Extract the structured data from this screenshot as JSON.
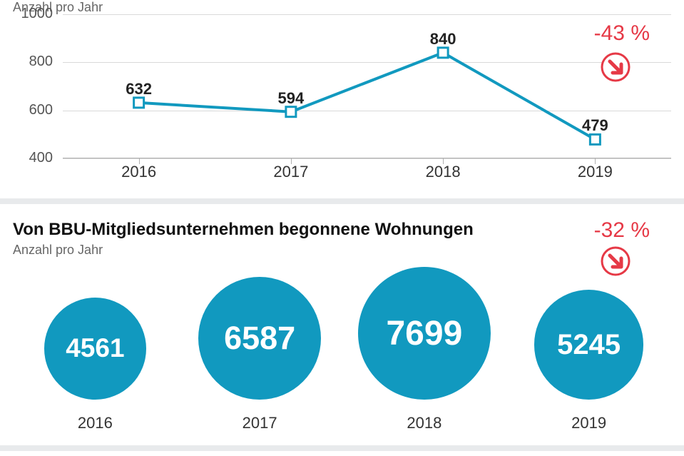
{
  "colors": {
    "primary": "#1199bf",
    "accent_red": "#e63946",
    "grid": "#d9d9d9",
    "axis": "#b0b0b0",
    "text": "#333333",
    "subtext": "#666666",
    "bg": "#ffffff",
    "divider": "#e8eaec",
    "white": "#ffffff"
  },
  "line_chart": {
    "type": "line",
    "subtitle": "Anzahl pro Jahr",
    "categories": [
      "2016",
      "2017",
      "2018",
      "2019"
    ],
    "values": [
      632,
      594,
      840,
      479
    ],
    "ylim": [
      400,
      1000
    ],
    "yticks": [
      400,
      600,
      800,
      1000
    ],
    "line_color": "#1199bf",
    "line_width": 4,
    "marker_fill": "#ffffff",
    "marker_stroke": "#1199bf",
    "marker_size": 7,
    "label_fontsize": 22,
    "tick_fontsize": 20,
    "change_label": "-43 %",
    "change_label_fontsize": 30
  },
  "bubble_chart": {
    "type": "bubble",
    "title": "Von BBU-Mitgliedsunternehmen begonnene Wohnungen",
    "subtitle": "Anzahl pro Jahr",
    "categories": [
      "2016",
      "2017",
      "2018",
      "2019"
    ],
    "values": [
      4561,
      6587,
      7699,
      5245
    ],
    "bubble_color": "#1199bf",
    "max_diameter": 186,
    "value_font_color": "#ffffff",
    "title_fontsize": 24,
    "subtitle_fontsize": 18,
    "year_fontsize": 22,
    "change_label": "-32 %",
    "change_label_fontsize": 30
  }
}
